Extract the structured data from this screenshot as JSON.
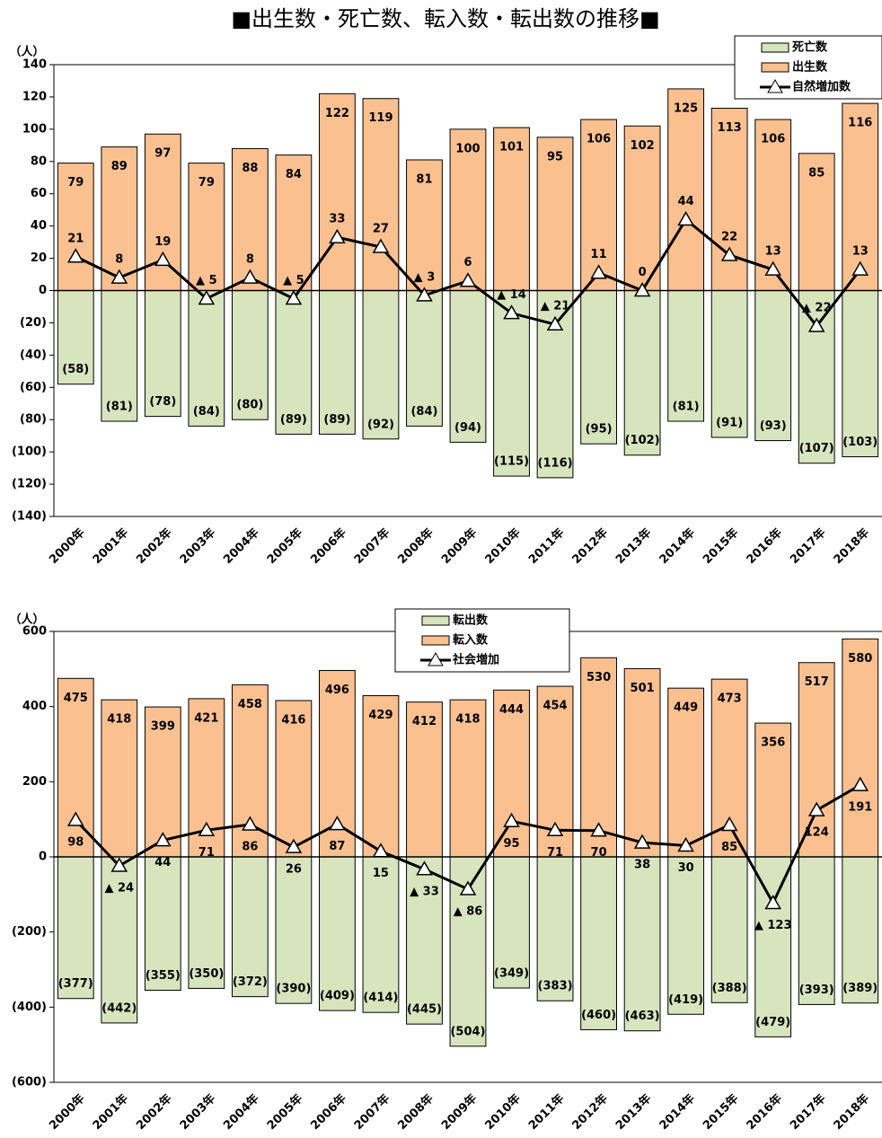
{
  "chart_data": [
    {
      "type": "bar",
      "title": "■出生数・死亡数、転入数・転出数の推移■",
      "y_label": "（人）",
      "categories": [
        "2000年",
        "2001年",
        "2002年",
        "2003年",
        "2004年",
        "2005年",
        "2006年",
        "2007年",
        "2008年",
        "2009年",
        "2010年",
        "2011年",
        "2012年",
        "2013年",
        "2014年",
        "2015年",
        "2016年",
        "2017年",
        "2018年"
      ],
      "ylim": [
        -140,
        140
      ],
      "yticks": [
        {
          "value": -140,
          "label": "(140)"
        },
        {
          "value": -120,
          "label": "(120)"
        },
        {
          "value": -100,
          "label": "(100)"
        },
        {
          "value": -80,
          "label": "(80)"
        },
        {
          "value": -60,
          "label": "(60)"
        },
        {
          "value": -40,
          "label": "(40)"
        },
        {
          "value": -20,
          "label": "(20)"
        },
        0,
        20,
        40,
        60,
        80,
        100,
        120,
        140
      ],
      "series": [
        {
          "name": "死亡数",
          "type": "bar",
          "color": "#d7e4bd",
          "values": [
            -58,
            -81,
            -78,
            -84,
            -80,
            -89,
            -89,
            -92,
            -84,
            -94,
            -115,
            -116,
            -95,
            -102,
            -81,
            -91,
            -93,
            -107,
            -103
          ],
          "value_labels": [
            "(58)",
            "(81)",
            "(78)",
            "(84)",
            "(80)",
            "(89)",
            "(89)",
            "(92)",
            "(84)",
            "(94)",
            "(115)",
            "(116)",
            "(95)",
            "(102)",
            "(81)",
            "(91)",
            "(93)",
            "(107)",
            "(103)"
          ]
        },
        {
          "name": "出生数",
          "type": "bar",
          "color": "#fac090",
          "values": [
            79,
            89,
            97,
            79,
            88,
            84,
            122,
            119,
            81,
            100,
            101,
            95,
            106,
            102,
            125,
            113,
            106,
            85,
            116
          ]
        },
        {
          "name": "自然増加数",
          "type": "line",
          "color": "#000000",
          "values": [
            21,
            8,
            19,
            -5,
            8,
            -5,
            33,
            27,
            -3,
            6,
            -14,
            -21,
            11,
            0,
            44,
            22,
            13,
            -22,
            13
          ],
          "value_labels": [
            "21",
            "8",
            "19",
            "▲ 5",
            "8",
            "▲ 5",
            "33",
            "27",
            "▲ 3",
            "6",
            "▲ 14",
            "▲ 21",
            "11",
            "0",
            "44",
            "22",
            "13",
            "▲ 22",
            "13"
          ]
        }
      ]
    },
    {
      "type": "bar",
      "y_label": "（人）",
      "categories": [
        "2000年",
        "2001年",
        "2002年",
        "2003年",
        "2004年",
        "2005年",
        "2006年",
        "2007年",
        "2008年",
        "2009年",
        "2010年",
        "2011年",
        "2012年",
        "2013年",
        "2014年",
        "2015年",
        "2016年",
        "2017年",
        "2018年"
      ],
      "ylim": [
        -600,
        600
      ],
      "yticks": [
        {
          "value": -600,
          "label": "(600)"
        },
        {
          "value": -400,
          "label": "(400)"
        },
        {
          "value": -200,
          "label": "(200)"
        },
        0,
        200,
        400,
        600
      ],
      "series": [
        {
          "name": "転出数",
          "type": "bar",
          "color": "#d7e4bd",
          "values": [
            -377,
            -442,
            -355,
            -350,
            -372,
            -390,
            -409,
            -414,
            -445,
            -504,
            -349,
            -383,
            -460,
            -463,
            -419,
            -388,
            -479,
            -393,
            -389
          ],
          "value_labels": [
            "(377)",
            "(442)",
            "(355)",
            "(350)",
            "(372)",
            "(390)",
            "(409)",
            "(414)",
            "(445)",
            "(504)",
            "(349)",
            "(383)",
            "(460)",
            "(463)",
            "(419)",
            "(388)",
            "(479)",
            "(393)",
            "(389)"
          ]
        },
        {
          "name": "転入数",
          "type": "bar",
          "color": "#fac090",
          "values": [
            475,
            418,
            399,
            421,
            458,
            416,
            496,
            429,
            412,
            418,
            444,
            454,
            530,
            501,
            449,
            473,
            356,
            517,
            580
          ]
        },
        {
          "name": "社会増加",
          "type": "line",
          "color": "#000000",
          "values": [
            98,
            -24,
            44,
            71,
            86,
            26,
            87,
            15,
            -33,
            -86,
            95,
            71,
            70,
            38,
            30,
            85,
            -123,
            124,
            191
          ],
          "value_labels": [
            "98",
            "▲ 24",
            "44",
            "71",
            "86",
            "26",
            "87",
            "15",
            "▲ 33",
            "▲ 86",
            "95",
            "71",
            "70",
            "38",
            "30",
            "85",
            "▲ 123",
            "124",
            "191"
          ]
        }
      ]
    }
  ]
}
